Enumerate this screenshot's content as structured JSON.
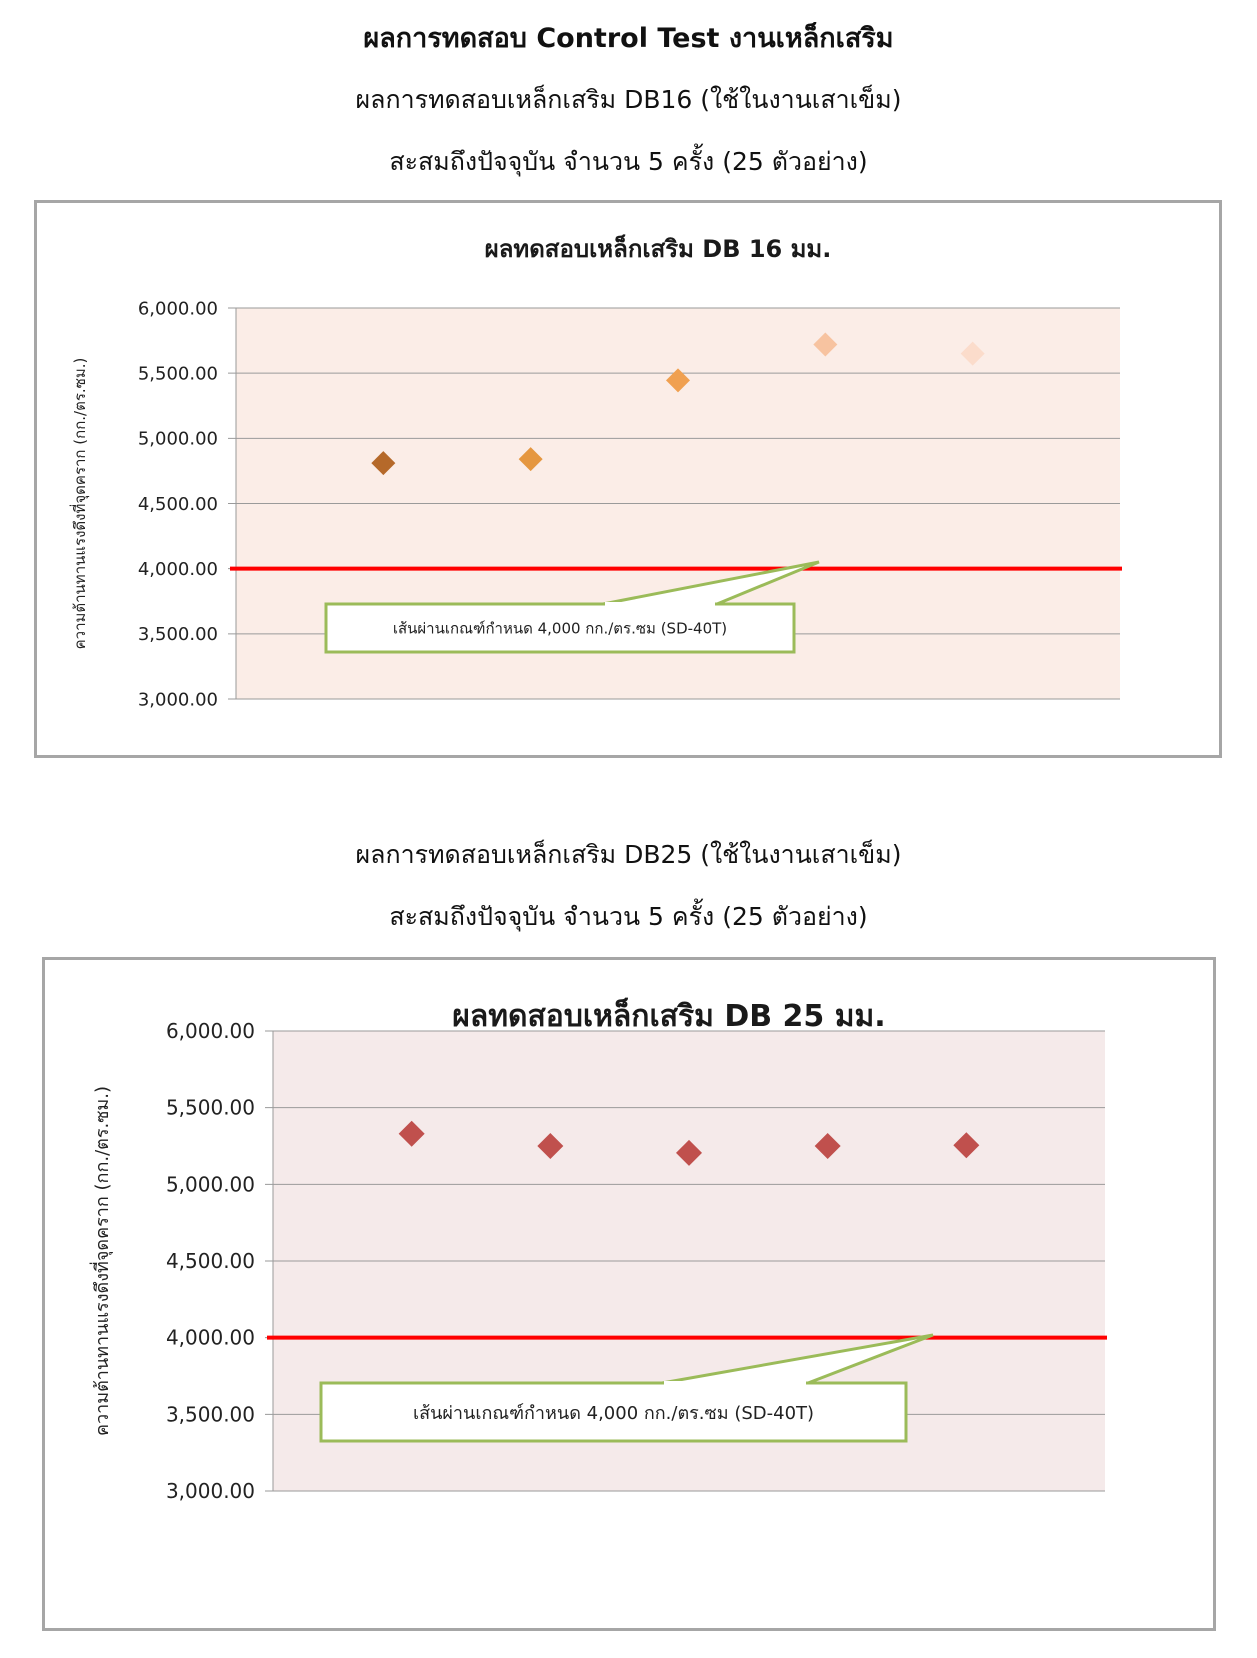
{
  "header": {
    "title": "ผลการทดสอบ Control Test งานเหล็กเสริม",
    "db16_subtitle": "ผลการทดสอบเหล็กเสริม DB16 (ใช้ในงานเสาเข็ม)",
    "db16_count": "สะสมถึงปัจจุบัน จำนวน 5 ครั้ง (25 ตัวอย่าง)",
    "db25_subtitle": "ผลการทดสอบเหล็กเสริม DB25 (ใช้ในงานเสาเข็ม)",
    "db25_count": "สะสมถึงปัจจุบัน จำนวน 5 ครั้ง (25 ตัวอย่าง)"
  },
  "chart_data": [
    {
      "type": "scatter",
      "title": "ผลทดสอบเหล็กเสริม DB 16 มม.",
      "ylabel": "ความต้านทานแรงดึงที่จุดคราก (กก./ตร.ซม.)",
      "xlabel": "",
      "x": [
        1,
        2,
        3,
        4,
        5
      ],
      "values": [
        4810,
        4840,
        5445,
        5720,
        5650
      ],
      "ylim": [
        3000,
        6000
      ],
      "xlim": [
        0,
        6
      ],
      "yticks": [
        "3,000.00",
        "3,500.00",
        "4,000.00",
        "4,500.00",
        "5,000.00",
        "5,500.00",
        "6,000.00"
      ],
      "ytick_values": [
        3000,
        3500,
        4000,
        4500,
        5000,
        5500,
        6000
      ],
      "grid": true,
      "plot_background": "#fbede7",
      "point_colors": [
        "#b5692a",
        "#e59740",
        "#f0a050",
        "#f7c3a0",
        "#fbdccb"
      ],
      "threshold": {
        "value": 4000,
        "color": "#ff0000",
        "label": "เส้นผ่านเกณฑ์กำหนด 4,000 กก./ตร.ซม (SD-40T)",
        "callout_border": "#9bbb59"
      }
    },
    {
      "type": "scatter",
      "title": "ผลทดสอบเหล็กเสริม DB 25 มม.",
      "ylabel": "ความต้านทานแรงดึงที่จุดคราก (กก./ตร.ซม.)",
      "xlabel": "",
      "x": [
        1,
        2,
        3,
        4,
        5
      ],
      "values": [
        5330,
        5250,
        5205,
        5250,
        5255
      ],
      "ylim": [
        3000,
        6000
      ],
      "xlim": [
        0,
        6
      ],
      "yticks": [
        "3,000.00",
        "3,500.00",
        "4,000.00",
        "4,500.00",
        "5,000.00",
        "5,500.00",
        "6,000.00"
      ],
      "ytick_values": [
        3000,
        3500,
        4000,
        4500,
        5000,
        5500,
        6000
      ],
      "grid": true,
      "plot_background": "#f5eaea",
      "point_colors": [
        "#c0504d",
        "#c0504d",
        "#c0504d",
        "#c0504d",
        "#c0504d"
      ],
      "threshold": {
        "value": 4000,
        "color": "#ff0000",
        "label": "เส้นผ่านเกณฑ์กำหนด 4,000 กก./ตร.ซม (SD-40T)",
        "callout_border": "#9bbb59"
      }
    }
  ]
}
